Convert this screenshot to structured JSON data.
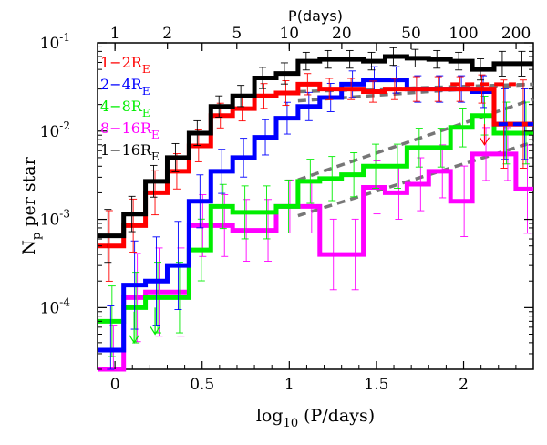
{
  "chart_data": {
    "type": "step",
    "x_axis": {
      "label_main": "log",
      "label_sub": "10",
      "label_rest": " (P/days)",
      "range": [
        -0.1,
        2.4
      ],
      "ticks": [
        0,
        0.5,
        1,
        1.5,
        2
      ],
      "tick_labels": [
        "0",
        "0.5",
        "1",
        "1.5",
        "2"
      ]
    },
    "y_axis": {
      "label_main": "N",
      "label_sub": "p",
      "label_rest": " per star",
      "scale": "log",
      "range": [
        2e-05,
        0.1
      ],
      "ticks": [
        0.0001,
        0.001,
        0.01,
        0.1
      ],
      "tick_base": "10",
      "tick_exponents": [
        "-4",
        "-3",
        "-2",
        "-1"
      ]
    },
    "top_axis": {
      "title": "P(days)",
      "ticks": [
        1,
        2,
        5,
        10,
        20,
        50,
        100,
        200
      ],
      "tick_labels": [
        "1",
        "2",
        "5",
        "10",
        "20",
        "50",
        "100",
        "200"
      ]
    },
    "bin_edges": [
      -0.1,
      0.05,
      0.175,
      0.3,
      0.425,
      0.55,
      0.675,
      0.8,
      0.925,
      1.05,
      1.175,
      1.3,
      1.425,
      1.55,
      1.675,
      1.8,
      1.925,
      2.05,
      2.175,
      2.3,
      2.4
    ],
    "series": [
      {
        "name_main": "1−16R",
        "name_sub": "E",
        "color": "#000000",
        "values": [
          0.00065,
          0.00115,
          0.0027,
          0.005,
          0.0095,
          0.019,
          0.025,
          0.04,
          0.045,
          0.062,
          0.065,
          0.065,
          0.062,
          0.07,
          0.067,
          0.065,
          0.062,
          0.05,
          0.058,
          0.058
        ],
        "errors": [
          0.3,
          0.2,
          0.18,
          0.16,
          0.14,
          0.12,
          0.12,
          0.12,
          0.12,
          0.1,
          0.1,
          0.1,
          0.1,
          0.1,
          0.1,
          0.1,
          0.1,
          0.12,
          0.14,
          0.14
        ]
      },
      {
        "name_main": "1−2R",
        "name_sub": "E",
        "color": "#ff0000",
        "values": [
          0.0005,
          0.00085,
          0.002,
          0.0035,
          0.0068,
          0.015,
          0.018,
          0.025,
          0.027,
          0.034,
          0.03,
          0.03,
          0.028,
          0.03,
          0.03,
          0.03,
          0.03,
          0.03,
          0.012,
          0.012
        ],
        "errors": [
          0.4,
          0.3,
          0.25,
          0.2,
          0.18,
          0.14,
          0.14,
          0.14,
          0.14,
          0.12,
          0.12,
          0.12,
          0.12,
          0.12,
          0.14,
          0.14,
          0.14,
          0.16,
          0.5,
          0.5
        ]
      },
      {
        "name_main": "2−4R",
        "name_sub": "E",
        "color": "#0000ff",
        "values": [
          3.3e-05,
          0.00018,
          0.0002,
          0.0003,
          0.0016,
          0.0035,
          0.005,
          0.0085,
          0.014,
          0.019,
          0.024,
          0.034,
          0.038,
          0.038,
          0.03,
          0.03,
          0.03,
          0.028,
          0.012,
          0.012
        ],
        "errors": [
          0.5,
          0.5,
          0.5,
          0.5,
          0.3,
          0.25,
          0.22,
          0.2,
          0.18,
          0.16,
          0.16,
          0.15,
          0.15,
          0.15,
          0.15,
          0.15,
          0.15,
          0.18,
          0.4,
          0.4
        ]
      },
      {
        "name_main": "4−8R",
        "name_sub": "E",
        "color": "#00ee00",
        "values": [
          7e-05,
          0.0001,
          0.00013,
          0.00013,
          0.00045,
          0.0014,
          0.0012,
          0.0012,
          0.0014,
          0.0027,
          0.0029,
          0.0032,
          0.004,
          0.004,
          0.0065,
          0.0065,
          0.011,
          0.015,
          0.0095,
          0.0095
        ],
        "errors": [
          0.4,
          0.4,
          0.4,
          0.4,
          0.35,
          0.25,
          0.3,
          0.3,
          0.3,
          0.25,
          0.25,
          0.25,
          0.25,
          0.25,
          0.22,
          0.22,
          0.22,
          0.22,
          0.35,
          0.35
        ]
      },
      {
        "name_main": "8−16R",
        "name_sub": "E",
        "color": "#ff00ff",
        "values": [
          2e-05,
          0.00013,
          0.00015,
          0.00015,
          0.00085,
          0.00085,
          0.00075,
          0.00075,
          0.0014,
          0.0014,
          0.0004,
          0.0004,
          0.0023,
          0.002,
          0.0025,
          0.0035,
          0.0016,
          0.0055,
          0.0055,
          0.0022
        ],
        "errors": [
          0.5,
          0.5,
          0.5,
          0.5,
          0.35,
          0.35,
          0.35,
          0.35,
          0.3,
          0.3,
          0.4,
          0.4,
          0.3,
          0.3,
          0.3,
          0.3,
          0.4,
          0.3,
          0.3,
          0.5
        ]
      }
    ],
    "arrows": [
      {
        "color": "#00ee00",
        "x": 0.11,
        "y_top": 9e-05,
        "y_bottom": 4e-05
      },
      {
        "color": "#00ee00",
        "x": 0.23,
        "y_top": 0.0001,
        "y_bottom": 5e-05
      },
      {
        "color": "#ff0000",
        "x": 2.12,
        "y_top": 0.012,
        "y_bottom": 0.007
      }
    ],
    "dashed_lines": [
      {
        "color": "#777777",
        "x": [
          1.05,
          2.4
        ],
        "y": [
          0.028,
          0.034
        ]
      },
      {
        "color": "#777777",
        "x": [
          1.05,
          2.4
        ],
        "y": [
          0.022,
          0.034
        ]
      },
      {
        "color": "#777777",
        "x": [
          1.05,
          2.4
        ],
        "y": [
          0.0028,
          0.023
        ]
      },
      {
        "color": "#777777",
        "x": [
          1.05,
          2.4
        ],
        "y": [
          0.0011,
          0.0075
        ]
      }
    ],
    "extrapolation_dashes": [
      {
        "color": "#ff0000",
        "x": [
          1.925,
          2.3
        ],
        "y": [
          0.034,
          0.034
        ]
      },
      {
        "color": "#0000ff",
        "x": [
          2.2,
          2.4
        ],
        "y": [
          0.012,
          0.012
        ]
      }
    ]
  }
}
